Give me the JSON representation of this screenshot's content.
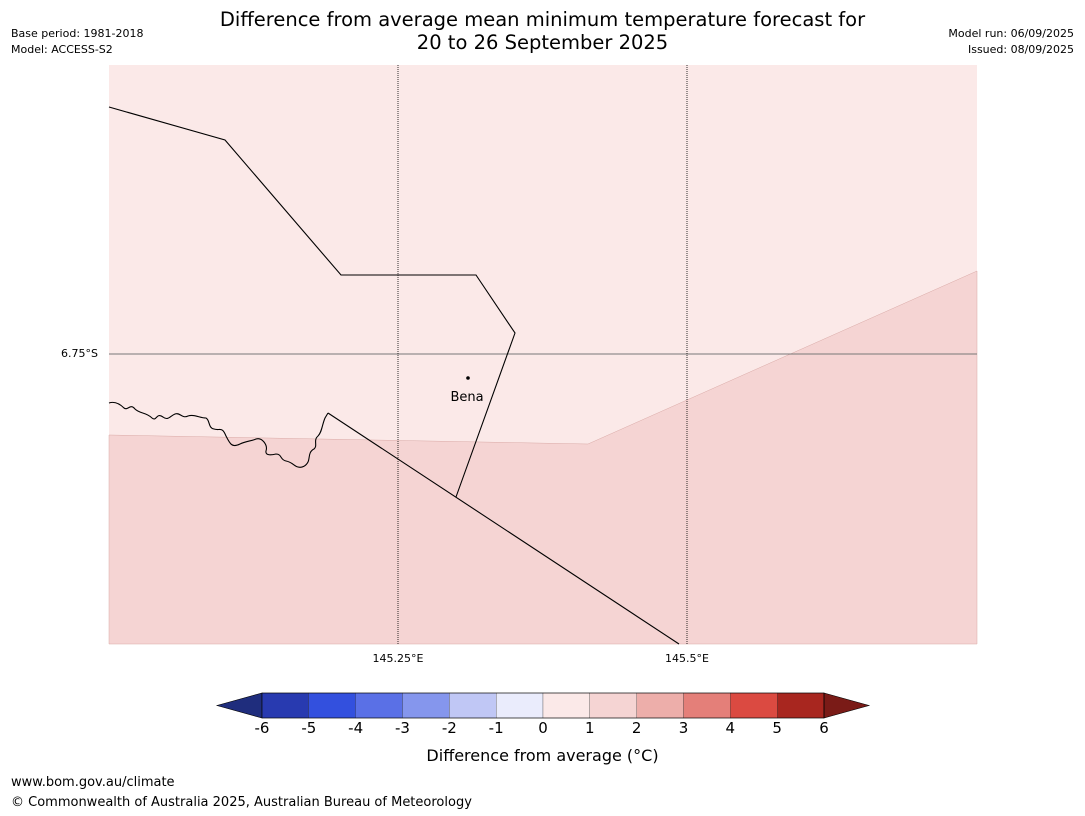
{
  "title_line1": "Difference from average mean minimum temperature forecast for",
  "title_line2": "20 to 26 September 2025",
  "meta_left": {
    "base_period": "Base period: 1981-2018",
    "model": "Model: ACCESS-S2"
  },
  "meta_right": {
    "model_run": "Model run: 06/09/2025",
    "issued": "Issued: 08/09/2025"
  },
  "axes": {
    "lat_label": "6.75°S",
    "lon_labels": [
      "145.25°E",
      "145.5°E"
    ]
  },
  "place": {
    "name": "Bena"
  },
  "colorbar": {
    "title": "Difference from average (°C)",
    "ticks": [
      "-6",
      "-5",
      "-4",
      "-3",
      "-2",
      "-1",
      "0",
      "1",
      "2",
      "3",
      "4",
      "5",
      "6"
    ],
    "colors": [
      "#1f2d7d",
      "#283ab0",
      "#3350de",
      "#5a70e6",
      "#8596ed",
      "#c0c7f5",
      "#eaecfc",
      "#fbe9e8",
      "#f5d4d3",
      "#edaeaa",
      "#e47f79",
      "#db4a41",
      "#a8261f",
      "#7a1b17"
    ]
  },
  "map_fill": {
    "plus_0_to_1": "#fbe9e8",
    "plus_1_to_2": "#f5d4d3"
  },
  "footer": {
    "url": "www.bom.gov.au/climate",
    "copyright": "© Commonwealth of Australia 2025, Australian Bureau of Meteorology"
  }
}
